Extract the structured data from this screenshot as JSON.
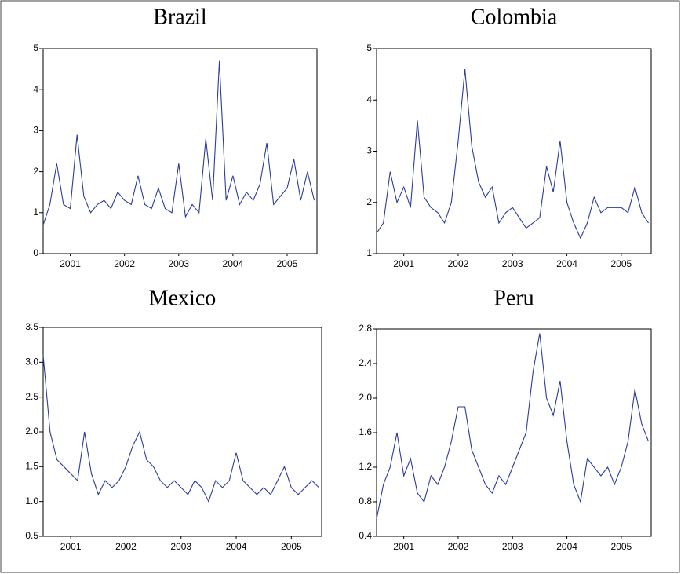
{
  "chart_data": [
    {
      "type": "line",
      "title": "Brazil",
      "color": "#2b3c9c",
      "x": [
        2001,
        2001.125,
        2001.25,
        2001.375,
        2001.5,
        2001.625,
        2001.75,
        2001.875,
        2002,
        2002.125,
        2002.25,
        2002.375,
        2002.5,
        2002.625,
        2002.75,
        2002.875,
        2003,
        2003.125,
        2003.25,
        2003.375,
        2003.5,
        2003.625,
        2003.75,
        2003.875,
        2004,
        2004.125,
        2004.25,
        2004.375,
        2004.5,
        2004.625,
        2004.75,
        2004.875,
        2005,
        2005.125,
        2005.25,
        2005.375,
        2005.5,
        2005.625,
        2005.75,
        2005.875,
        2006
      ],
      "values": [
        0.7,
        1.2,
        2.2,
        1.2,
        1.1,
        2.9,
        1.4,
        1.0,
        1.2,
        1.3,
        1.1,
        1.5,
        1.3,
        1.2,
        1.9,
        1.2,
        1.1,
        1.6,
        1.1,
        1.0,
        2.2,
        0.9,
        1.2,
        1.0,
        2.8,
        1.3,
        4.7,
        1.3,
        1.9,
        1.2,
        1.5,
        1.3,
        1.7,
        2.7,
        1.2,
        1.4,
        1.6,
        2.3,
        1.3,
        2.0,
        1.3
      ],
      "xlim": [
        2001,
        2006.05
      ],
      "ylim": [
        0,
        5
      ],
      "yticks": [
        0,
        1,
        2,
        3,
        4,
        5
      ],
      "xticks": [
        {
          "value": 2001.5,
          "label": "2001"
        },
        {
          "value": 2002.5,
          "label": "2002"
        },
        {
          "value": 2003.5,
          "label": "2003"
        },
        {
          "value": 2004.5,
          "label": "2004"
        },
        {
          "value": 2005.5,
          "label": "2005"
        }
      ]
    },
    {
      "type": "line",
      "title": "Colombia",
      "color": "#2b3c9c",
      "x": [
        2001,
        2001.125,
        2001.25,
        2001.375,
        2001.5,
        2001.625,
        2001.75,
        2001.875,
        2002,
        2002.125,
        2002.25,
        2002.375,
        2002.5,
        2002.625,
        2002.75,
        2002.875,
        2003,
        2003.125,
        2003.25,
        2003.375,
        2003.5,
        2003.625,
        2003.75,
        2003.875,
        2004,
        2004.125,
        2004.25,
        2004.375,
        2004.5,
        2004.625,
        2004.75,
        2004.875,
        2005,
        2005.125,
        2005.25,
        2005.375,
        2005.5,
        2005.625,
        2005.75,
        2005.875,
        2006
      ],
      "values": [
        1.4,
        1.6,
        2.6,
        2.0,
        2.3,
        1.9,
        3.6,
        2.1,
        1.9,
        1.8,
        1.6,
        2.0,
        3.2,
        4.6,
        3.1,
        2.4,
        2.1,
        2.3,
        1.6,
        1.8,
        1.9,
        1.7,
        1.5,
        1.6,
        1.7,
        2.7,
        2.2,
        3.2,
        2.0,
        1.6,
        1.3,
        1.6,
        2.1,
        1.8,
        1.9,
        1.9,
        1.9,
        1.8,
        2.3,
        1.8,
        1.6
      ],
      "xlim": [
        2001,
        2006.05
      ],
      "ylim": [
        1,
        5
      ],
      "yticks": [
        1,
        2,
        3,
        4,
        5
      ],
      "xticks": [
        {
          "value": 2001.5,
          "label": "2001"
        },
        {
          "value": 2002.5,
          "label": "2002"
        },
        {
          "value": 2003.5,
          "label": "2003"
        },
        {
          "value": 2004.5,
          "label": "2004"
        },
        {
          "value": 2005.5,
          "label": "2005"
        }
      ]
    },
    {
      "type": "line",
      "title": "Mexico",
      "color": "#2b3c9c",
      "x": [
        2001,
        2001.125,
        2001.25,
        2001.375,
        2001.5,
        2001.625,
        2001.75,
        2001.875,
        2002,
        2002.125,
        2002.25,
        2002.375,
        2002.5,
        2002.625,
        2002.75,
        2002.875,
        2003,
        2003.125,
        2003.25,
        2003.375,
        2003.5,
        2003.625,
        2003.75,
        2003.875,
        2004,
        2004.125,
        2004.25,
        2004.375,
        2004.5,
        2004.625,
        2004.75,
        2004.875,
        2005,
        2005.125,
        2005.25,
        2005.375,
        2005.5,
        2005.625,
        2005.75,
        2005.875,
        2006
      ],
      "values": [
        3.1,
        2.0,
        1.6,
        1.5,
        1.4,
        1.3,
        2.0,
        1.4,
        1.1,
        1.3,
        1.2,
        1.3,
        1.5,
        1.8,
        2.0,
        1.6,
        1.5,
        1.3,
        1.2,
        1.3,
        1.2,
        1.1,
        1.3,
        1.2,
        1.0,
        1.3,
        1.2,
        1.3,
        1.7,
        1.3,
        1.2,
        1.1,
        1.2,
        1.1,
        1.3,
        1.5,
        1.2,
        1.1,
        1.2,
        1.3,
        1.2
      ],
      "xlim": [
        2001,
        2006.05
      ],
      "ylim": [
        0.5,
        3.5
      ],
      "yticks": [
        0.5,
        {
          "value": 1,
          "label": "1.0"
        },
        1.5,
        {
          "value": 2,
          "label": "2.0"
        },
        2.5,
        {
          "value": 3,
          "label": "3.0"
        },
        3.5
      ],
      "xticks": [
        {
          "value": 2001.5,
          "label": "2001"
        },
        {
          "value": 2002.5,
          "label": "2002"
        },
        {
          "value": 2003.5,
          "label": "2003"
        },
        {
          "value": 2004.5,
          "label": "2004"
        },
        {
          "value": 2005.5,
          "label": "2005"
        }
      ]
    },
    {
      "type": "line",
      "title": "Peru",
      "color": "#2b3c9c",
      "x": [
        2001,
        2001.125,
        2001.25,
        2001.375,
        2001.5,
        2001.625,
        2001.75,
        2001.875,
        2002,
        2002.125,
        2002.25,
        2002.375,
        2002.5,
        2002.625,
        2002.75,
        2002.875,
        2003,
        2003.125,
        2003.25,
        2003.375,
        2003.5,
        2003.625,
        2003.75,
        2003.875,
        2004,
        2004.125,
        2004.25,
        2004.375,
        2004.5,
        2004.625,
        2004.75,
        2004.875,
        2005,
        2005.125,
        2005.25,
        2005.375,
        2005.5,
        2005.625,
        2005.75,
        2005.875,
        2006
      ],
      "values": [
        0.6,
        1.0,
        1.2,
        1.6,
        1.1,
        1.3,
        0.9,
        0.8,
        1.1,
        1.0,
        1.2,
        1.5,
        1.9,
        1.9,
        1.4,
        1.2,
        1.0,
        0.9,
        1.1,
        1.0,
        1.2,
        1.4,
        1.6,
        2.3,
        2.75,
        2.0,
        1.8,
        2.2,
        1.5,
        1.0,
        0.8,
        1.3,
        1.2,
        1.1,
        1.2,
        1.0,
        1.2,
        1.5,
        2.1,
        1.7,
        1.5
      ],
      "xlim": [
        2001,
        2006.05
      ],
      "ylim": [
        0.4,
        2.8
      ],
      "yticks": [
        0.4,
        0.8,
        1.2,
        1.6,
        {
          "value": 2,
          "label": "2.0"
        },
        2.4,
        2.8
      ],
      "xticks": [
        {
          "value": 2001.5,
          "label": "2001"
        },
        {
          "value": 2002.5,
          "label": "2002"
        },
        {
          "value": 2003.5,
          "label": "2003"
        },
        {
          "value": 2004.5,
          "label": "2004"
        },
        {
          "value": 2005.5,
          "label": "2005"
        }
      ]
    }
  ]
}
